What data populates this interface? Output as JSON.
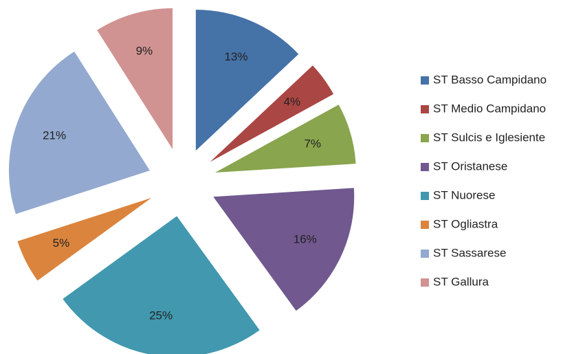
{
  "chart_data": {
    "type": "pie",
    "categories": [
      "ST Basso Campidano",
      "ST Medio Campidano",
      "ST Sulcis e Iglesiente",
      "ST Oristanese",
      "ST Nuorese",
      "ST Ogliastra",
      "ST Sassarese",
      "ST Gallura"
    ],
    "values": [
      13,
      4,
      7,
      16,
      25,
      5,
      21,
      9
    ],
    "value_labels": [
      "13%",
      "4%",
      "7%",
      "16%",
      "25%",
      "5%",
      "21%",
      "9%"
    ],
    "colors": [
      "#4572a7",
      "#aa4643",
      "#89a54e",
      "#71588f",
      "#4198af",
      "#db843d",
      "#93a9cf",
      "#d19392"
    ],
    "legend": "right"
  }
}
